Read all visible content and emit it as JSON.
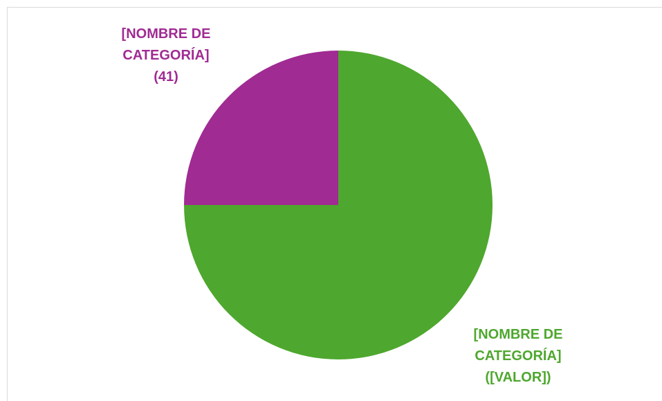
{
  "chart_data": {
    "type": "pie",
    "categories": [
      "[NOMBRE DE CATEGORÍA]",
      "[NOMBRE DE CATEGORÍA]"
    ],
    "values": [
      123,
      41
    ],
    "value_labels": [
      "([VALOR])",
      "(41)"
    ],
    "colors": [
      "#4ea72e",
      "#a02b93"
    ]
  }
}
